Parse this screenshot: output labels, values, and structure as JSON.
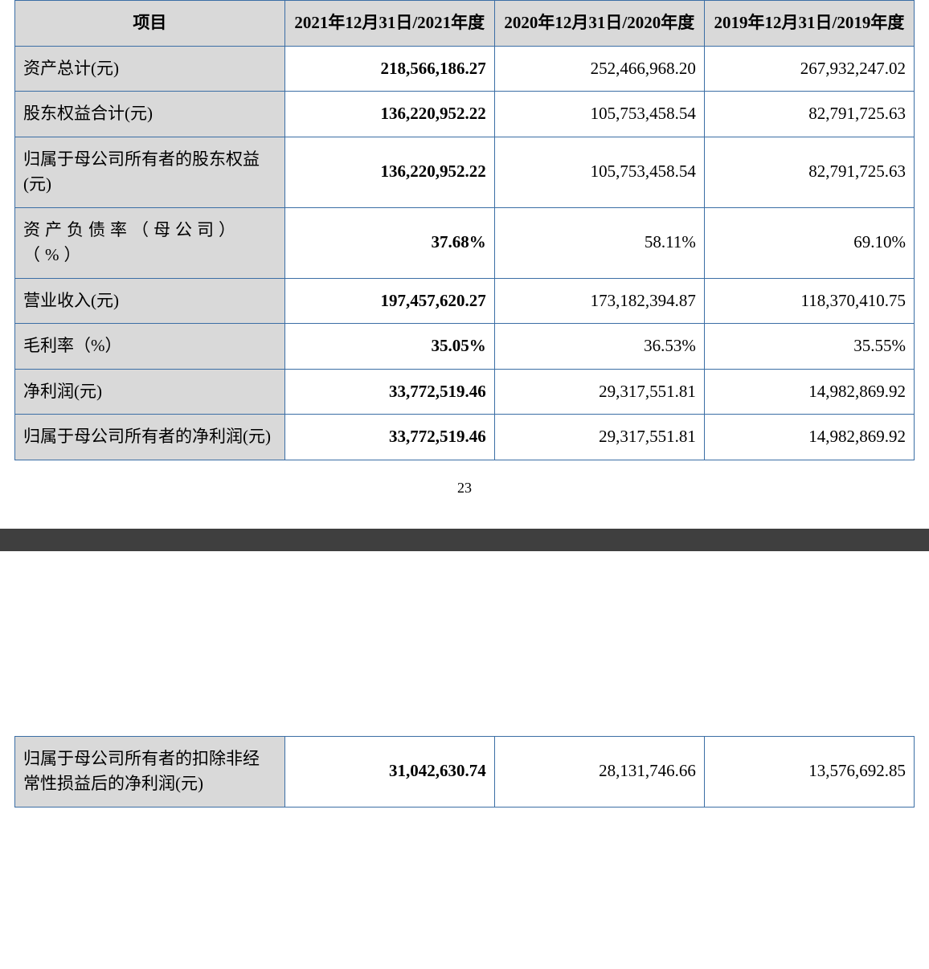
{
  "table1": {
    "type": "table",
    "border_color": "#3b6ea5",
    "header_bg": "#d9d9d9",
    "label_bg": "#d9d9d9",
    "value_bg": "#ffffff",
    "font_family": "SimSun",
    "header_fontsize": 21,
    "cell_fontsize": 21,
    "bold_column_index": 0,
    "columns": [
      "项目",
      "2021年12月31日/2021年度",
      "2020年12月31日/2020年度",
      "2019年12月31日/2019年度"
    ],
    "rows": [
      {
        "label": "资产总计(元)",
        "v2021": "218,566,186.27",
        "v2020": "252,466,968.20",
        "v2019": "267,932,247.02"
      },
      {
        "label": "股东权益合计(元)",
        "v2021": "136,220,952.22",
        "v2020": "105,753,458.54",
        "v2019": "82,791,725.63"
      },
      {
        "label": "归属于母公司所有者的股东权益(元)",
        "v2021": "136,220,952.22",
        "v2020": "105,753,458.54",
        "v2019": "82,791,725.63"
      },
      {
        "label": "资产负债率（母公司）（%）",
        "v2021": "37.68%",
        "v2020": "58.11%",
        "v2019": "69.10%",
        "label_spaced": true
      },
      {
        "label": "营业收入(元)",
        "v2021": "197,457,620.27",
        "v2020": "173,182,394.87",
        "v2019": "118,370,410.75"
      },
      {
        "label": "毛利率（%）",
        "v2021": "35.05%",
        "v2020": "36.53%",
        "v2019": "35.55%"
      },
      {
        "label": "净利润(元)",
        "v2021": "33,772,519.46",
        "v2020": "29,317,551.81",
        "v2019": "14,982,869.92"
      },
      {
        "label": "归属于母公司所有者的净利润(元)",
        "v2021": "33,772,519.46",
        "v2020": "29,317,551.81",
        "v2019": "14,982,869.92"
      }
    ]
  },
  "page_number": "23",
  "table2": {
    "type": "table",
    "border_color": "#3b6ea5",
    "label_bg": "#d9d9d9",
    "value_bg": "#ffffff",
    "rows": [
      {
        "label": "归属于母公司所有者的扣除非经常性损益后的净利润(元)",
        "v2021": "31,042,630.74",
        "v2020": "28,131,746.66",
        "v2019": "13,576,692.85"
      }
    ]
  }
}
